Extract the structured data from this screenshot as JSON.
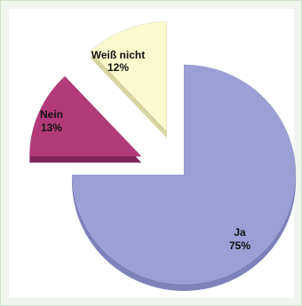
{
  "chart_data": {
    "type": "pie",
    "title": "",
    "legend": "none",
    "slices": [
      {
        "label": "Ja",
        "value": 75,
        "value_label": "75%",
        "color": "#9b9fd6",
        "side_color": "#7e82bb",
        "explode": 0
      },
      {
        "label": "Nein",
        "value": 13,
        "value_label": "13%",
        "color": "#b23a7a",
        "side_color": "#7e2456",
        "explode": 1
      },
      {
        "label": "Weiß nicht",
        "value": 12,
        "value_label": "12%",
        "color": "#fbfacf",
        "side_color": "#d7d59f",
        "explode": 1
      }
    ]
  }
}
